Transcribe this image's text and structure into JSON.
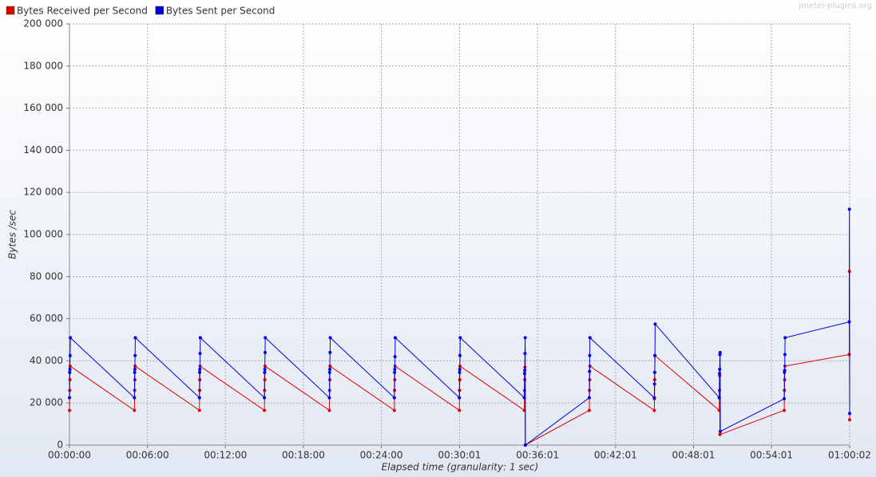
{
  "chart_data": {
    "type": "line",
    "watermark": "jmeter-plugins.org",
    "x_label": "Elapsed time (granularity: 1 sec)",
    "y_label": "Bytes /sec",
    "xlim": [
      0,
      3602
    ],
    "xticks": [
      {
        "value": 0,
        "label": "00:00:00"
      },
      {
        "value": 360,
        "label": "00:06:00"
      },
      {
        "value": 720,
        "label": "00:12:00"
      },
      {
        "value": 1080,
        "label": "00:18:00"
      },
      {
        "value": 1440,
        "label": "00:24:00"
      },
      {
        "value": 1801,
        "label": "00:30:01"
      },
      {
        "value": 2161,
        "label": "00:36:01"
      },
      {
        "value": 2521,
        "label": "00:42:01"
      },
      {
        "value": 2881,
        "label": "00:48:01"
      },
      {
        "value": 3241,
        "label": "00:54:01"
      },
      {
        "value": 3602,
        "label": "01:00:02"
      }
    ],
    "ylim": [
      0,
      200000
    ],
    "yticks": [
      0,
      {
        "value": 20000,
        "label": "20 000"
      },
      {
        "value": 40000,
        "label": "40 000"
      },
      {
        "value": 60000,
        "label": "60 000"
      },
      {
        "value": 80000,
        "label": "80 000"
      },
      {
        "value": 100000,
        "label": "100 000"
      },
      {
        "value": 120000,
        "label": "120 000"
      },
      {
        "value": 140000,
        "label": "140 000"
      },
      {
        "value": 160000,
        "label": "160 000"
      },
      {
        "value": 180000,
        "label": "180 000"
      },
      {
        "value": 200000,
        "label": "200 000"
      }
    ],
    "grid": true,
    "series": [
      {
        "name": "Bytes Received per Second",
        "color": "#e00000",
        "x": [
          0,
          1,
          2,
          3,
          300,
          301,
          302,
          303,
          600,
          601,
          602,
          603,
          900,
          901,
          902,
          903,
          1200,
          1201,
          1202,
          1203,
          1500,
          1501,
          1502,
          1503,
          1800,
          1801,
          1802,
          1803,
          2100,
          2101,
          2102,
          2103,
          2104,
          2400,
          2401,
          2402,
          2403,
          2700,
          2701,
          2702,
          2703,
          3000,
          3001,
          3002,
          3003,
          3300,
          3301,
          3302,
          3303,
          3600,
          3601,
          3602
        ],
        "values": [
          16500,
          26000,
          31000,
          37500,
          16500,
          26000,
          31000,
          37500,
          16500,
          26000,
          31000,
          37500,
          16500,
          26000,
          31000,
          37500,
          16500,
          26000,
          31000,
          37500,
          16500,
          26000,
          31000,
          37500,
          16500,
          26000,
          31000,
          37500,
          16500,
          26000,
          31000,
          37000,
          0,
          16500,
          26000,
          31000,
          37500,
          16500,
          22000,
          31000,
          42500,
          16500,
          26000,
          33000,
          5000,
          16500,
          26000,
          31000,
          37500,
          43000,
          82500,
          12000
        ]
      },
      {
        "name": "Bytes Sent per Second",
        "color": "#0000e0",
        "x": [
          0,
          1,
          2,
          3,
          4,
          300,
          301,
          302,
          303,
          304,
          600,
          601,
          602,
          603,
          604,
          900,
          901,
          902,
          903,
          904,
          1200,
          1201,
          1202,
          1203,
          1204,
          1500,
          1501,
          1502,
          1503,
          1504,
          1800,
          1801,
          1802,
          1803,
          1804,
          2100,
          2101,
          2102,
          2103,
          2104,
          2105,
          2400,
          2401,
          2402,
          2403,
          2700,
          2701,
          2702,
          2703,
          2704,
          3000,
          3001,
          3002,
          3003,
          3004,
          3005,
          3300,
          3301,
          3302,
          3303,
          3304,
          3600,
          3601,
          3602
        ],
        "values": [
          22500,
          34500,
          36000,
          42500,
          51000,
          22500,
          34500,
          36000,
          42500,
          51000,
          22500,
          34500,
          36000,
          43500,
          51000,
          22500,
          34500,
          36000,
          44000,
          51000,
          22500,
          34500,
          36000,
          44000,
          51000,
          22500,
          34500,
          36000,
          42000,
          51000,
          22500,
          34500,
          36000,
          42500,
          51000,
          22500,
          34000,
          35500,
          43500,
          51000,
          0,
          22500,
          35000,
          42500,
          51000,
          22500,
          29000,
          34500,
          42500,
          57500,
          22500,
          34000,
          36000,
          43000,
          44000,
          6500,
          22000,
          34500,
          35500,
          43000,
          51000,
          58500,
          112000,
          15000
        ]
      }
    ],
    "legend": "top-left"
  }
}
